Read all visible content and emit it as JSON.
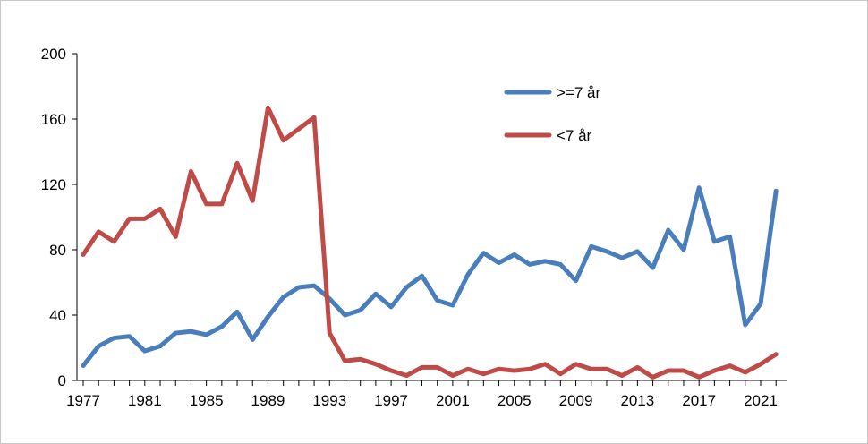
{
  "chart_data": {
    "type": "line",
    "title": "",
    "xlabel": "",
    "ylabel": "",
    "xlim": [
      1977,
      2022
    ],
    "ylim": [
      0,
      200
    ],
    "y_ticks": [
      0,
      40,
      80,
      120,
      160,
      200
    ],
    "x_ticks": [
      1977,
      1981,
      1985,
      1989,
      1993,
      1997,
      2001,
      2005,
      2009,
      2013,
      2017,
      2021
    ],
    "grid": false,
    "legend_position": "top-right",
    "x": [
      1977,
      1978,
      1979,
      1980,
      1981,
      1982,
      1983,
      1984,
      1985,
      1986,
      1987,
      1988,
      1989,
      1990,
      1991,
      1992,
      1993,
      1994,
      1995,
      1996,
      1997,
      1998,
      1999,
      2000,
      2001,
      2002,
      2003,
      2004,
      2005,
      2006,
      2007,
      2008,
      2009,
      2010,
      2011,
      2012,
      2013,
      2014,
      2015,
      2016,
      2017,
      2018,
      2019,
      2020,
      2021,
      2022
    ],
    "series": [
      {
        "name": ">=7 år",
        "color": "#4a7ebb",
        "values": [
          9,
          21,
          26,
          27,
          18,
          21,
          29,
          30,
          28,
          33,
          42,
          25,
          39,
          51,
          57,
          58,
          50,
          40,
          43,
          53,
          45,
          57,
          64,
          49,
          46,
          65,
          78,
          72,
          77,
          71,
          73,
          71,
          61,
          82,
          79,
          75,
          79,
          69,
          92,
          80,
          118,
          85,
          88,
          34,
          47,
          116
        ]
      },
      {
        "name": "<7 år",
        "color": "#be4b48",
        "values": [
          77,
          91,
          85,
          99,
          99,
          105,
          88,
          128,
          108,
          108,
          133,
          110,
          167,
          147,
          154,
          161,
          29,
          12,
          13,
          10,
          6,
          3,
          8,
          8,
          3,
          7,
          4,
          7,
          6,
          7,
          10,
          4,
          10,
          7,
          7,
          3,
          8,
          2,
          6,
          6,
          2,
          6,
          9,
          5,
          10,
          16
        ]
      }
    ]
  }
}
